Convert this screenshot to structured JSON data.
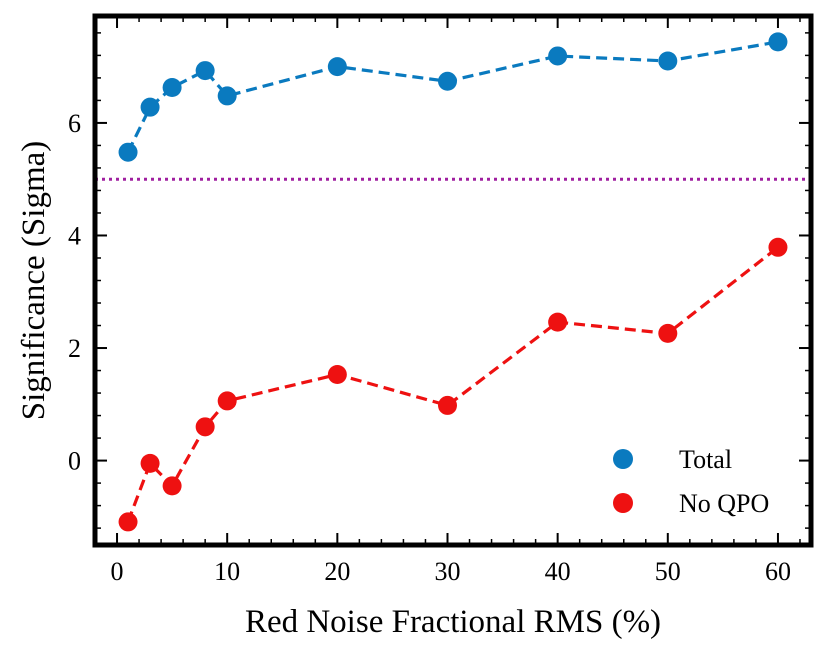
{
  "chart_data": {
    "type": "line",
    "title": "",
    "xlabel": "Red Noise Fractional RMS (%)",
    "ylabel": "Significance (Sigma)",
    "xlim": [
      -2,
      63
    ],
    "ylim": [
      -1.5,
      7.9
    ],
    "xticks": [
      0,
      10,
      20,
      30,
      40,
      50,
      60
    ],
    "yticks": [
      0,
      2,
      4,
      6
    ],
    "legend_position": "bottom-right",
    "series": [
      {
        "name": "Total",
        "color": "#0a7abf",
        "x": [
          1,
          3,
          5,
          8,
          10,
          20,
          30,
          40,
          50,
          60
        ],
        "y": [
          5.48,
          6.28,
          6.63,
          6.93,
          6.48,
          7.0,
          6.74,
          7.19,
          7.1,
          7.44
        ]
      },
      {
        "name": "No QPO",
        "color": "#ee1111",
        "x": [
          1,
          3,
          5,
          8,
          10,
          20,
          30,
          40,
          50,
          60
        ],
        "y": [
          -1.09,
          -0.05,
          -0.45,
          0.6,
          1.06,
          1.53,
          0.98,
          2.46,
          2.26,
          3.79
        ]
      }
    ],
    "reference_line": {
      "y": 5.0,
      "color": "#a020a0",
      "style": "dotted"
    }
  }
}
